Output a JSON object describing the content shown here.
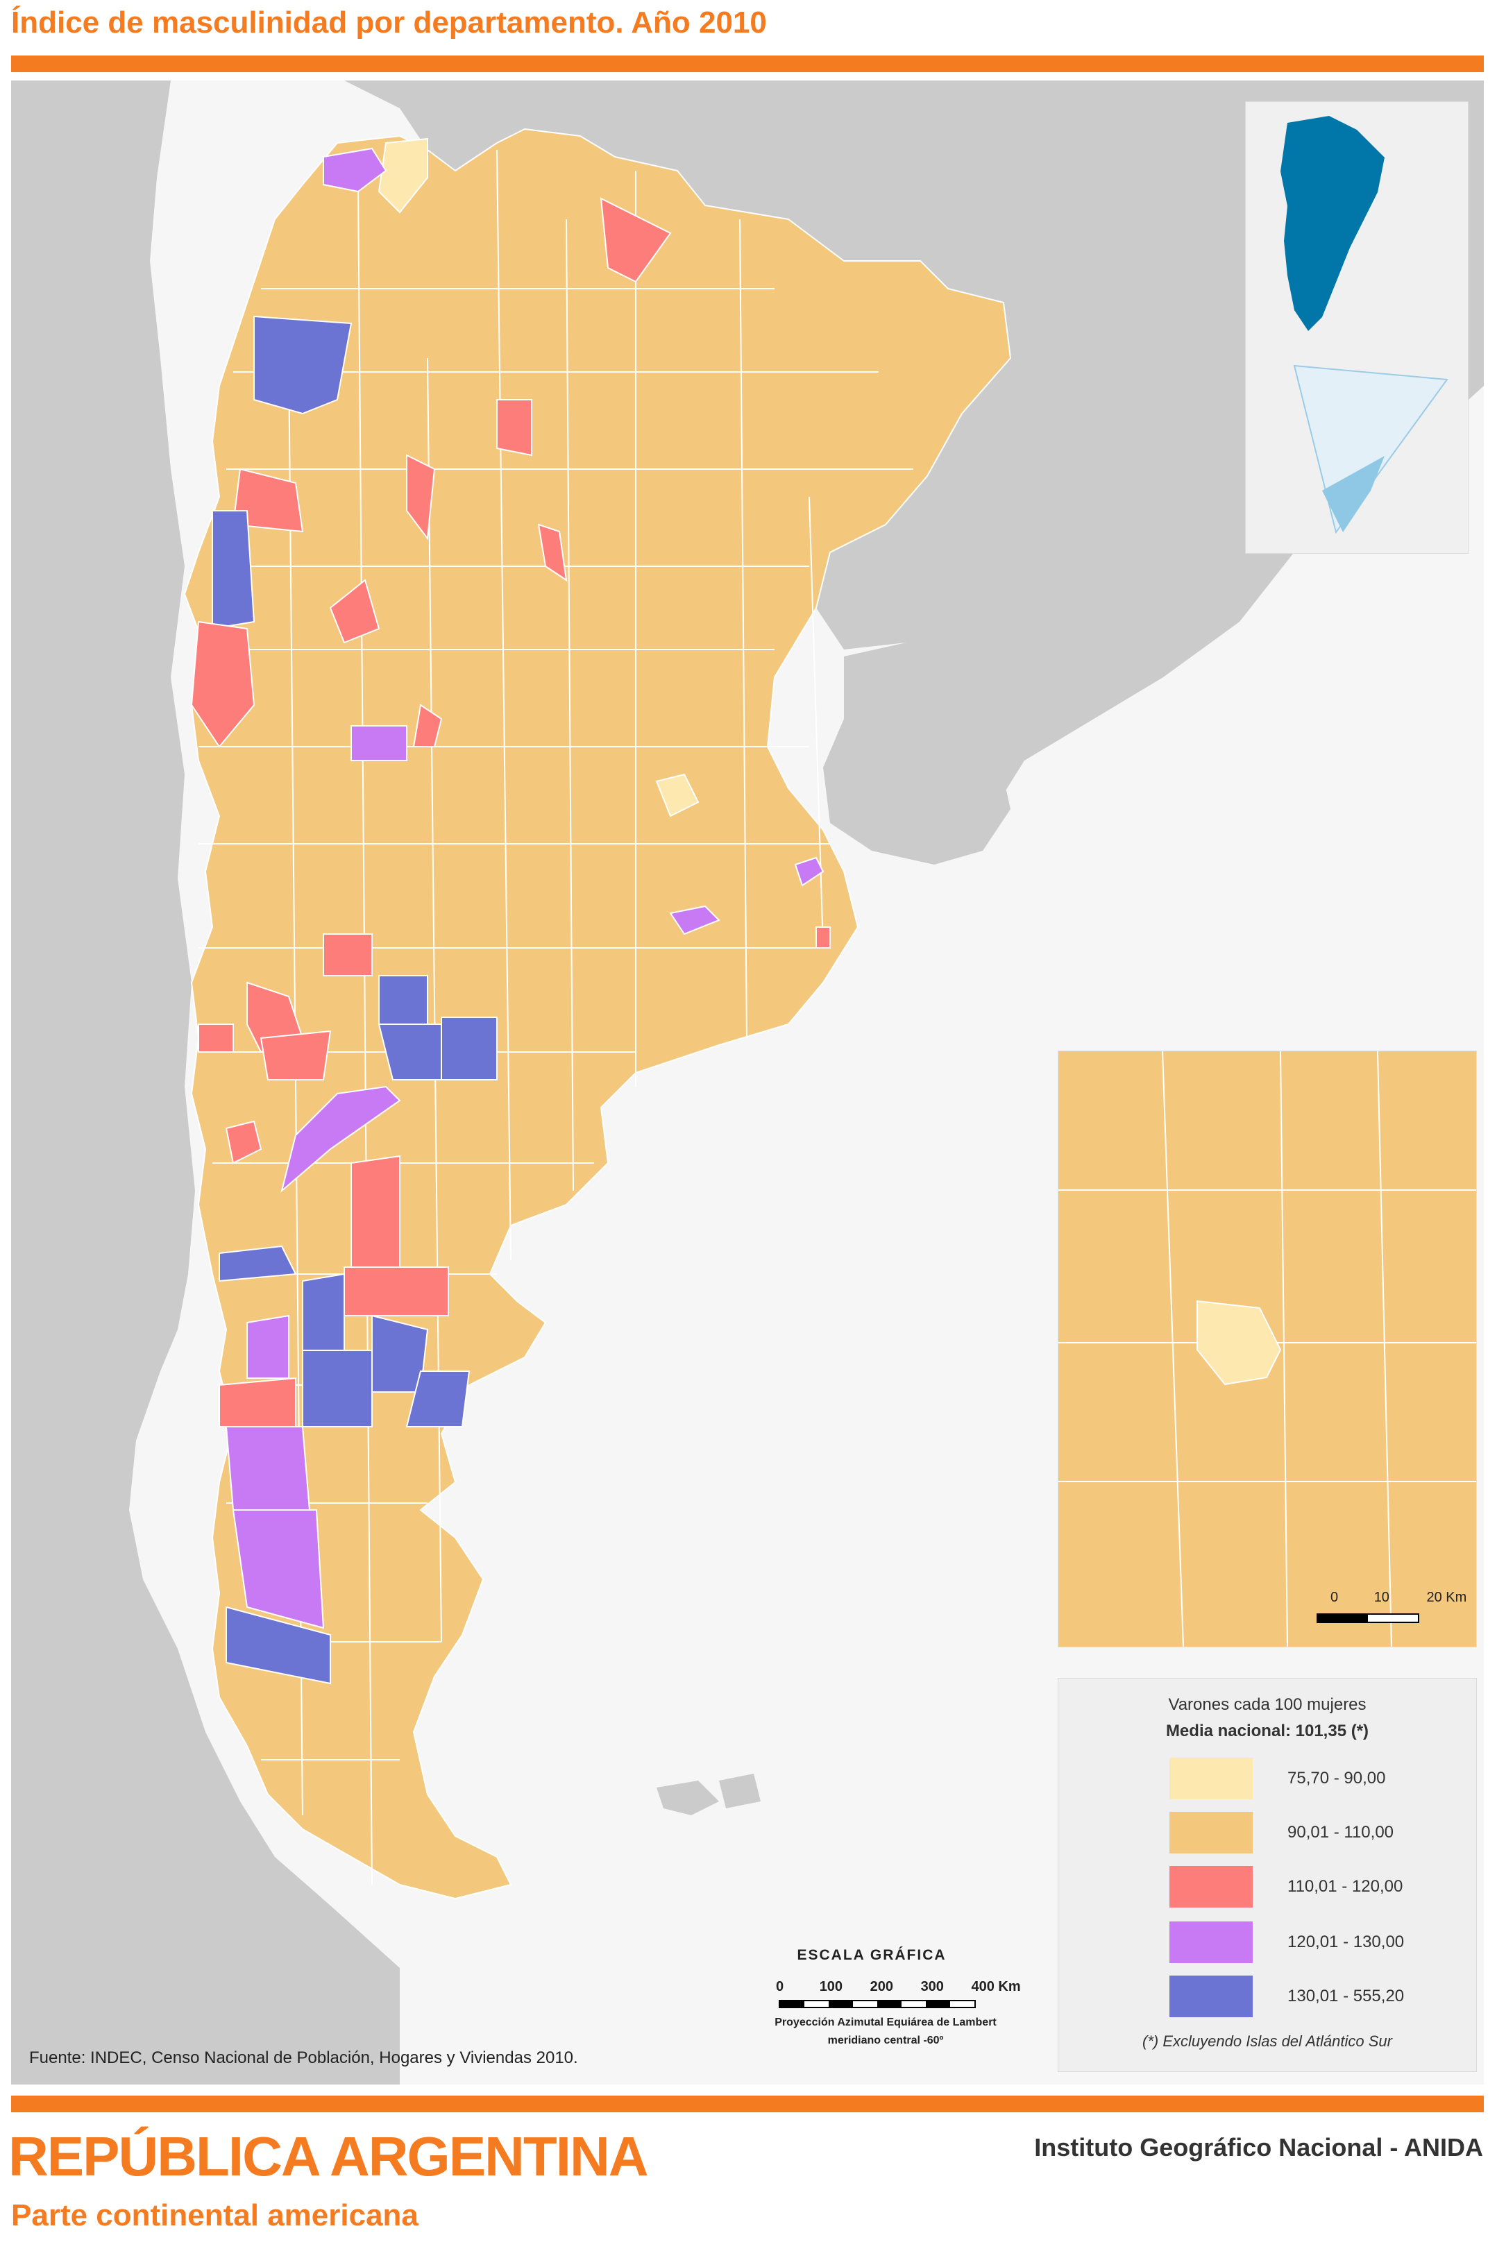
{
  "map_title": "Índice de masculinidad por departamento. Año 2010",
  "legend": {
    "title": "Varones cada 100 mujeres",
    "media": "Media nacional: 101,35 (*)",
    "note": "(*) Excluyendo Islas del Atlántico Sur",
    "classes": [
      {
        "label": "75,70 - 90,00",
        "color": "#fde8b0"
      },
      {
        "label": "90,01 - 110,00",
        "color": "#f3c77c"
      },
      {
        "label": "110,01 - 120,00",
        "color": "#fd7d7b"
      },
      {
        "label": "120,01 - 130,00",
        "color": "#c87af5"
      },
      {
        "label": "130,01 - 555,20",
        "color": "#6b74d2"
      }
    ]
  },
  "scale": {
    "title": "ESCALA GRÁFICA",
    "ticks": [
      "0",
      "100",
      "200",
      "300",
      "400 Km"
    ],
    "projection": "Proyección Azimutal Equiárea de Lambert",
    "meridian": "meridiano central -60º"
  },
  "inset_scale": {
    "ticks": [
      "0",
      "10",
      "20 Km"
    ]
  },
  "source": "Fuente: INDEC, Censo Nacional de Población, Hogares y Viviendas 2010.",
  "country_title": "REPÚBLICA ARGENTINA",
  "country_subtitle": "Parte continental americana",
  "institute": "Instituto Geográfico Nacional - ANIDA",
  "colors": {
    "accent": "#f47b20",
    "neighbor_land": "#cbcbcb",
    "sea": "#f6f6f6",
    "inset_blue": "#0077a8",
    "antarctica_light": "#e3f0f8",
    "antarctica_blue": "#8fc8e4"
  }
}
